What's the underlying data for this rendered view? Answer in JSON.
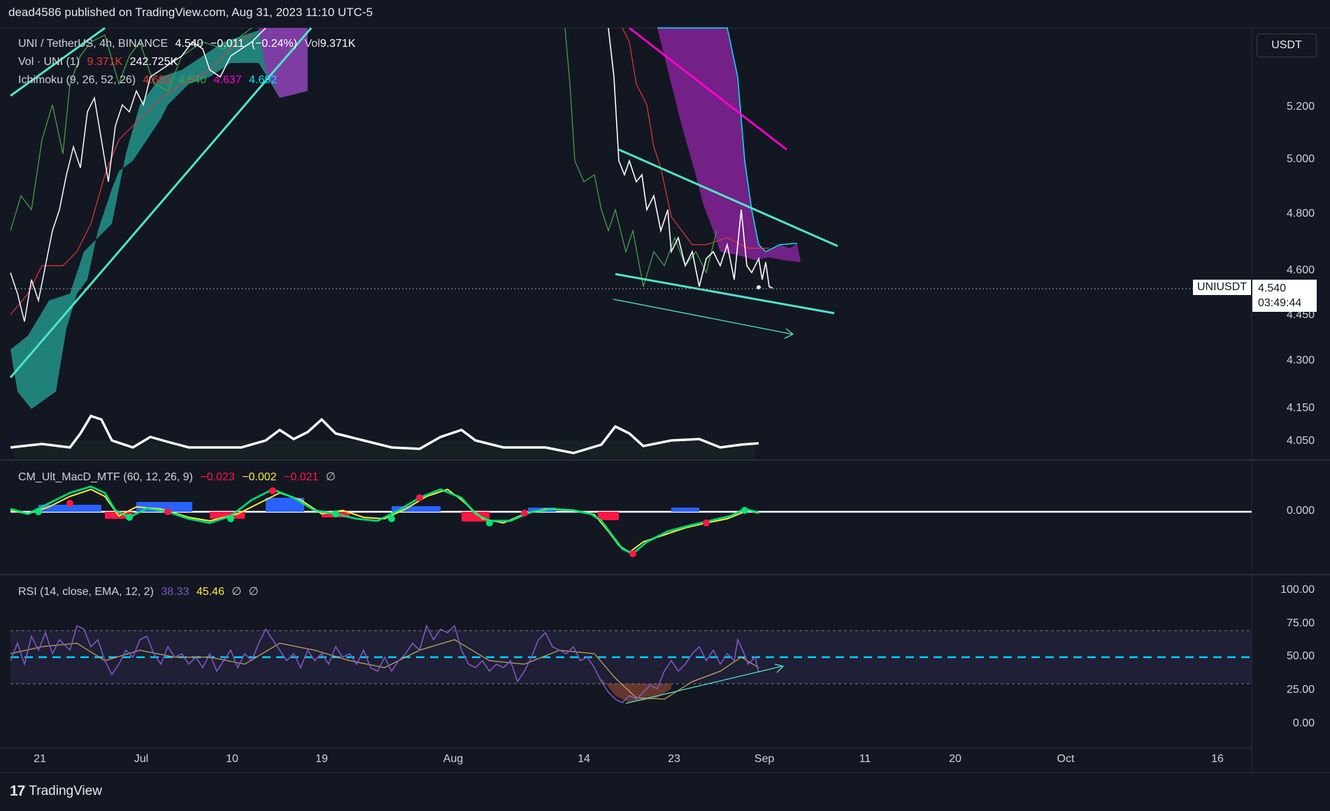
{
  "header": {
    "publisher": "dead4586 published on TradingView.com, Aug 31, 2023 11:10 UTC-5"
  },
  "footer": {
    "logo_text": "TradingView",
    "logo_mark": "17"
  },
  "toolbar": {
    "currency_button": "USDT"
  },
  "main_pane": {
    "legend": {
      "symbol": "UNI / TetherUS, 4h, BINANCE",
      "last": "4.540",
      "change": "−0.011",
      "change_pct": "(−0.24%)",
      "vol_label": "Vol",
      "vol_value": "9.371K",
      "vol_row_label": "Vol · UNI (1)",
      "vol_row_v1": "9.371K",
      "vol_row_v2": "242.725K",
      "ichimoku_label": "Ichimoku (9, 26, 52, 26)",
      "ichimoku_v1": "4.692",
      "ichimoku_v2": "4.540",
      "ichimoku_v3": "4.637",
      "ichimoku_v4": "4.692"
    },
    "price_axis": [
      "5.200",
      "5.000",
      "4.800",
      "4.600",
      "4.450",
      "4.300",
      "4.150",
      "4.050"
    ],
    "symbol_tag": "UNIUSDT",
    "last_price": "4.540",
    "countdown": "03:49:44",
    "colors": {
      "price": "#ffffff",
      "tenkan": "#e53935",
      "chikou": "#43a047",
      "cloud_bull": "#26a69a",
      "cloud_bear": "#9c27b0",
      "trendline": "#4ee6c8",
      "resistance": "#ff00cc"
    }
  },
  "macd_pane": {
    "legend": {
      "label": "CM_Ult_MacD_MTF (60, 12, 26, 9)",
      "v1": "−0.023",
      "v2": "−0.002",
      "v3": "−0.021",
      "v4": "∅"
    },
    "axis": [
      "0.000"
    ]
  },
  "rsi_pane": {
    "legend": {
      "label": "RSI (14, close, EMA, 12, 2)",
      "v1": "38.33",
      "v2": "45.46",
      "v3": "∅",
      "v4": "∅"
    },
    "axis": [
      "100.00",
      "75.00",
      "50.00",
      "25.00",
      "0.00"
    ]
  },
  "time_axis": [
    "21",
    "Jul",
    "10",
    "19",
    "Aug",
    "14",
    "23",
    "Sep",
    "11",
    "20",
    "Oct",
    "16"
  ],
  "chart_data": [
    {
      "type": "line",
      "title": "UNI / TetherUS, 4h, BINANCE",
      "xlabel": "",
      "ylabel": "",
      "ylim": [
        4.0,
        5.35
      ],
      "series": [
        {
          "name": "UNI / TetherUS",
          "dates": [
            "Jun 21",
            "Jun 25",
            "Jul 1",
            "Jul 5",
            "Jul 10",
            "Jul 14",
            "Jul 17",
            "Aug 17",
            "Aug 19",
            "Aug 21",
            "Aug 23",
            "Aug 25",
            "Aug 27",
            "Aug 29",
            "Aug 31"
          ],
          "values": [
            4.62,
            4.45,
            4.85,
            5.05,
            5.15,
            5.25,
            5.35,
            5.35,
            5.0,
            4.72,
            4.6,
            4.55,
            4.68,
            4.7,
            4.54
          ]
        }
      ],
      "annotations": [
        "uptrend support line",
        "descending channel",
        "descending resistance line"
      ]
    },
    {
      "type": "line",
      "title": "CM_Ult_MacD_MTF (60, 12, 26, 9)",
      "series": [
        {
          "name": "MACD",
          "dates": [
            "Jun 21",
            "Jun 27",
            "Jul 10",
            "Jul 14",
            "Jul 27",
            "Aug 1",
            "Aug 14",
            "Aug 17",
            "Aug 23",
            "Aug 29",
            "Aug 31"
          ],
          "values": [
            0.0,
            0.04,
            -0.01,
            0.04,
            -0.01,
            0.03,
            0.0,
            -0.07,
            -0.03,
            0.005,
            -0.023
          ]
        }
      ]
    },
    {
      "type": "line",
      "title": "RSI (14, close, EMA, 12, 2)",
      "ylim": [
        0,
        100
      ],
      "series": [
        {
          "name": "RSI",
          "dates": [
            "Jun 21",
            "Jun 25",
            "Jul 1",
            "Jul 10",
            "Jul 14",
            "Jul 24",
            "Aug 1",
            "Aug 10",
            "Aug 14",
            "Aug 17",
            "Aug 23",
            "Aug 29",
            "Aug 31"
          ],
          "values": [
            52,
            78,
            40,
            46,
            78,
            38,
            75,
            58,
            52,
            18,
            38,
            65,
            38.33
          ]
        }
      ],
      "levels": [
        75,
        50,
        25
      ]
    }
  ]
}
